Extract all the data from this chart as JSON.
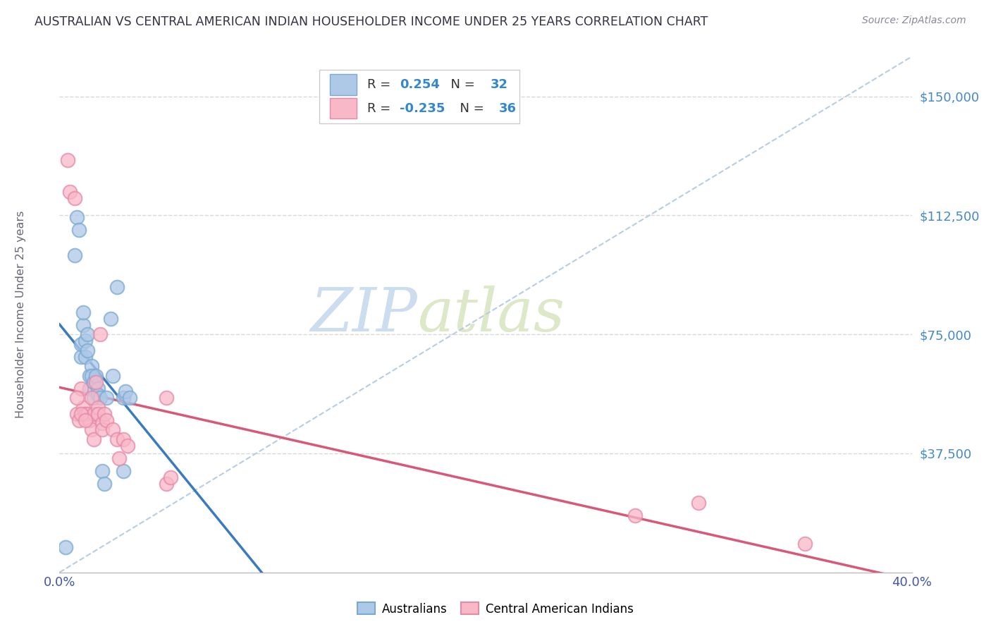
{
  "title": "AUSTRALIAN VS CENTRAL AMERICAN INDIAN HOUSEHOLDER INCOME UNDER 25 YEARS CORRELATION CHART",
  "source": "Source: ZipAtlas.com",
  "ylabel": "Householder Income Under 25 years",
  "ytick_labels": [
    "$37,500",
    "$75,000",
    "$112,500",
    "$150,000"
  ],
  "ytick_values": [
    37500,
    75000,
    112500,
    150000
  ],
  "ymin": 0,
  "ymax": 162500,
  "xmin": 0.0,
  "xmax": 0.4,
  "color_blue_fill": "#aec8e8",
  "color_blue_edge": "#7aaad0",
  "color_pink_fill": "#f8b8c8",
  "color_pink_edge": "#e888a8",
  "color_blue_line": "#3a7abf",
  "color_pink_line": "#d85878",
  "color_diag_line": "#b8cce4",
  "color_ytick": "#4488cc",
  "color_xtick": "#4455aa",
  "background": "#ffffff",
  "watermark_zip_color": "#ccddf0",
  "watermark_atlas_color": "#dde8c8",
  "grid_color": "#d8d8d8",
  "legend_box_edge": "#cccccc",
  "legend_text_color": "#333333",
  "legend_value_color": "#3388cc",
  "aus_x": [
    0.003,
    0.007,
    0.008,
    0.009,
    0.01,
    0.01,
    0.011,
    0.011,
    0.012,
    0.012,
    0.013,
    0.013,
    0.014,
    0.014,
    0.015,
    0.015,
    0.016,
    0.016,
    0.017,
    0.018,
    0.018,
    0.019,
    0.02,
    0.021,
    0.022,
    0.024,
    0.025,
    0.027,
    0.03,
    0.03,
    0.031,
    0.033
  ],
  "aus_y": [
    8000,
    100000,
    112000,
    108000,
    68000,
    72000,
    78000,
    82000,
    73000,
    68000,
    75000,
    70000,
    62000,
    58000,
    65000,
    62000,
    60000,
    55000,
    62000,
    58000,
    56000,
    55000,
    32000,
    28000,
    55000,
    80000,
    62000,
    90000,
    55000,
    32000,
    57000,
    55000
  ],
  "cam_x": [
    0.004,
    0.005,
    0.007,
    0.008,
    0.009,
    0.01,
    0.011,
    0.012,
    0.013,
    0.014,
    0.015,
    0.015,
    0.016,
    0.016,
    0.017,
    0.018,
    0.018,
    0.019,
    0.02,
    0.02,
    0.021,
    0.022,
    0.025,
    0.027,
    0.028,
    0.03,
    0.032,
    0.05,
    0.052,
    0.05,
    0.27,
    0.3,
    0.35,
    0.008,
    0.01,
    0.012
  ],
  "cam_y": [
    130000,
    120000,
    118000,
    50000,
    48000,
    58000,
    52000,
    50000,
    50000,
    48000,
    55000,
    45000,
    50000,
    42000,
    60000,
    52000,
    50000,
    75000,
    47000,
    45000,
    50000,
    48000,
    45000,
    42000,
    36000,
    42000,
    40000,
    28000,
    30000,
    55000,
    18000,
    22000,
    9000,
    55000,
    50000,
    48000
  ]
}
